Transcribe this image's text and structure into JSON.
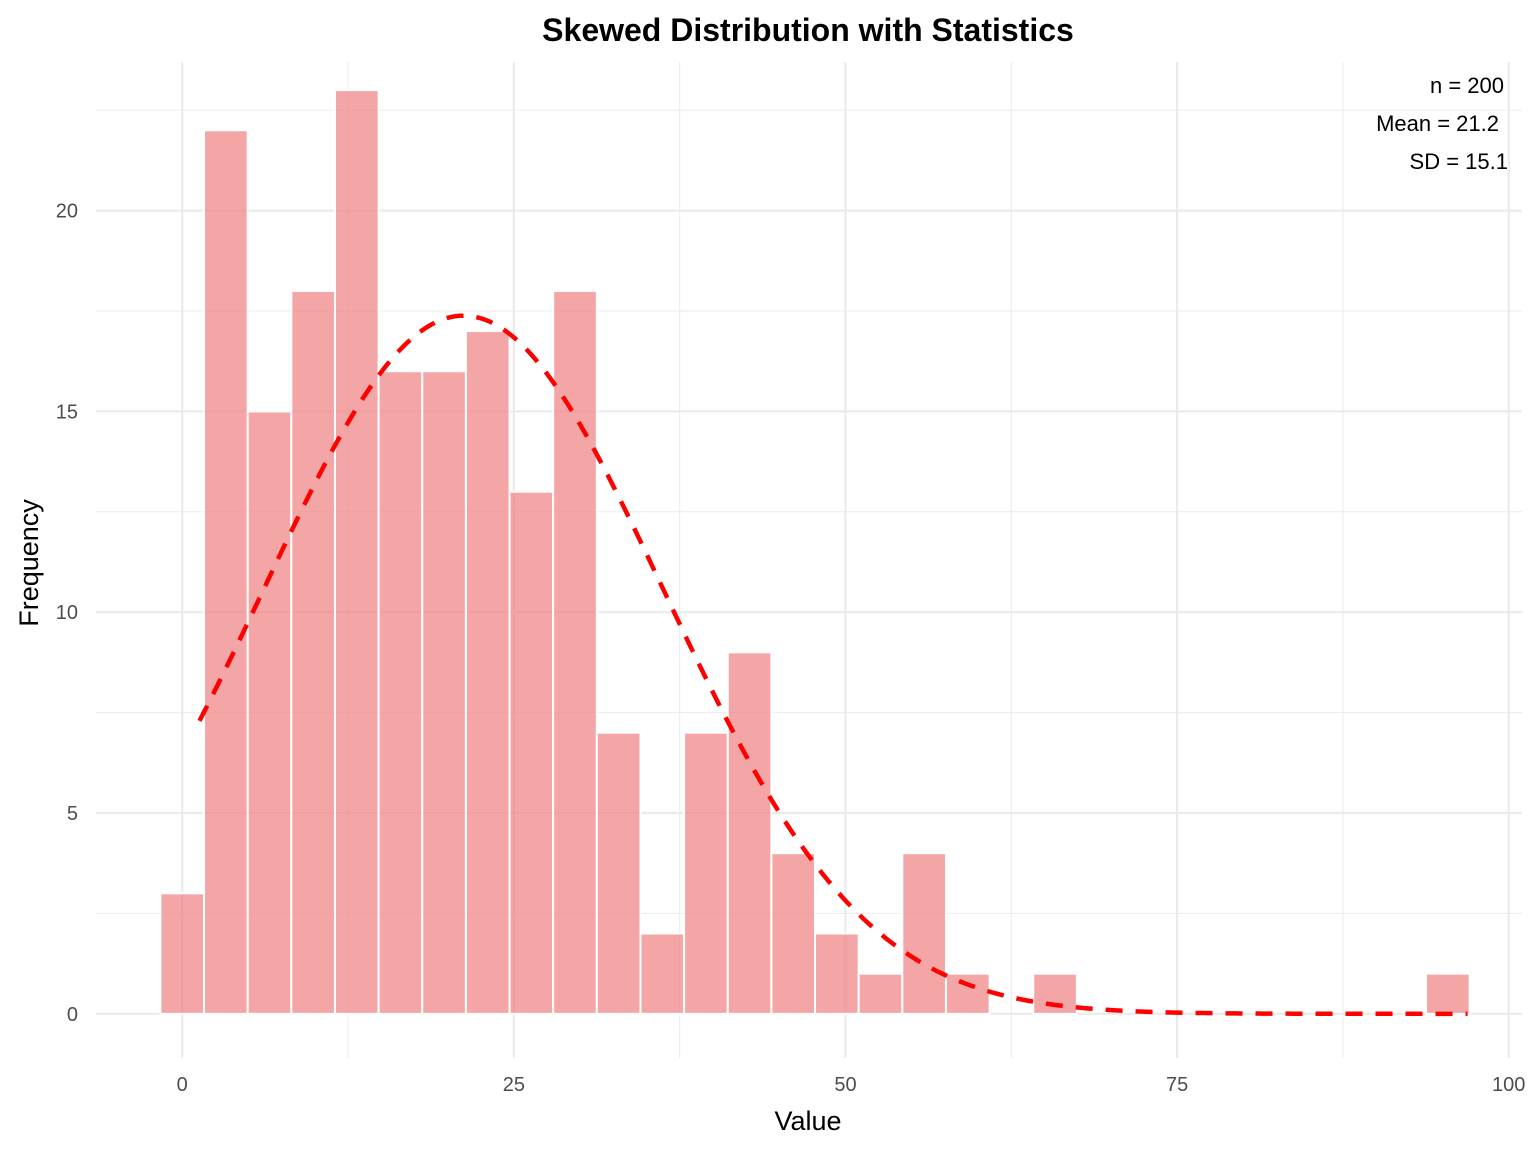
{
  "chart_data": {
    "type": "bar",
    "title": "Skewed Distribution with Statistics",
    "xlabel": "Value",
    "ylabel": "Frequency",
    "xlim": [
      -6.5,
      101
    ],
    "ylim": [
      -1.1,
      23.7
    ],
    "x_ticks": [
      0,
      25,
      50,
      75,
      100
    ],
    "x_tick_labels": [
      "0",
      "25",
      "50",
      "75",
      "100"
    ],
    "x_minor_ticks": [
      -12.5,
      12.5,
      37.5,
      62.5,
      87.5
    ],
    "y_ticks": [
      0,
      5,
      10,
      15,
      20
    ],
    "y_tick_labels": [
      "0",
      "5",
      "10",
      "15",
      "20"
    ],
    "y_minor_ticks": [
      2.5,
      7.5,
      12.5,
      17.5,
      22.5
    ],
    "grid": true,
    "bin_width": 3.29,
    "bins": [
      {
        "center": 0.0,
        "count": 3
      },
      {
        "center": 3.29,
        "count": 22
      },
      {
        "center": 6.58,
        "count": 15
      },
      {
        "center": 9.87,
        "count": 18
      },
      {
        "center": 13.16,
        "count": 23
      },
      {
        "center": 16.45,
        "count": 16
      },
      {
        "center": 19.74,
        "count": 16
      },
      {
        "center": 23.03,
        "count": 17
      },
      {
        "center": 26.32,
        "count": 13
      },
      {
        "center": 29.61,
        "count": 18
      },
      {
        "center": 32.9,
        "count": 7
      },
      {
        "center": 36.19,
        "count": 2
      },
      {
        "center": 39.48,
        "count": 7
      },
      {
        "center": 42.77,
        "count": 9
      },
      {
        "center": 46.06,
        "count": 4
      },
      {
        "center": 49.35,
        "count": 2
      },
      {
        "center": 52.64,
        "count": 1
      },
      {
        "center": 55.93,
        "count": 4
      },
      {
        "center": 59.22,
        "count": 1
      },
      {
        "center": 62.51,
        "count": 0
      },
      {
        "center": 65.8,
        "count": 1
      },
      {
        "center": 69.09,
        "count": 0
      },
      {
        "center": 72.38,
        "count": 0
      },
      {
        "center": 75.67,
        "count": 0
      },
      {
        "center": 78.96,
        "count": 0
      },
      {
        "center": 82.25,
        "count": 0
      },
      {
        "center": 85.54,
        "count": 0
      },
      {
        "center": 88.83,
        "count": 0
      },
      {
        "center": 92.12,
        "count": 0
      },
      {
        "center": 95.41,
        "count": 1
      }
    ],
    "bar_color": "#f08080",
    "bar_opacity": 0.7,
    "bar_outline": "#ffffff",
    "normal_curve": {
      "mean": 21.2,
      "sd": 15.1,
      "n": 200,
      "x_range": [
        1.3,
        96.9
      ],
      "color": "#ff0000",
      "style": "dashed"
    },
    "annotations": [
      "n = 200",
      "Mean = 21.2",
      "SD = 15.1"
    ]
  }
}
